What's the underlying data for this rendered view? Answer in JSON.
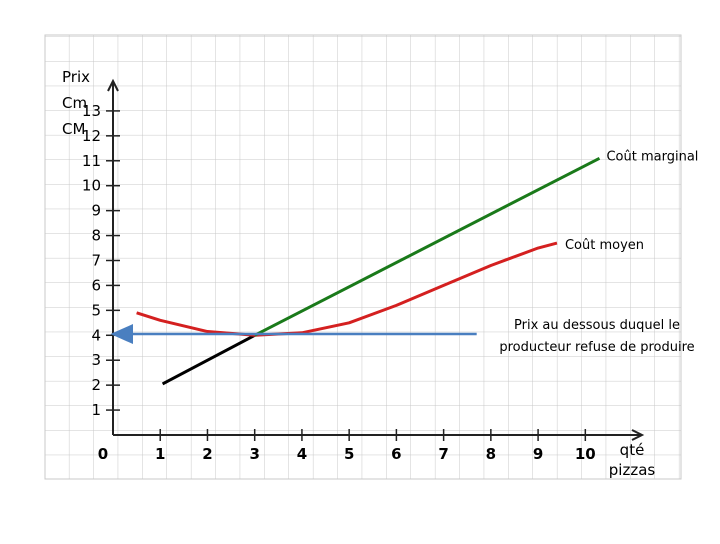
{
  "chart_data": {
    "type": "line",
    "ylabel": [
      "Prix",
      "Cm",
      "CM"
    ],
    "xlabel": [
      "qté",
      "pizzas"
    ],
    "xlim": [
      0,
      11.2
    ],
    "ylim": [
      0,
      14.2
    ],
    "xticks": [
      0,
      1,
      2,
      3,
      4,
      5,
      6,
      7,
      8,
      9,
      10
    ],
    "yticks": [
      1,
      2,
      3,
      4,
      5,
      6,
      7,
      8,
      9,
      10,
      11,
      12,
      13
    ],
    "grid": true,
    "series": [
      {
        "color": "#000000",
        "x": [
          1.05,
          3
        ],
        "values": [
          2.05,
          4
        ]
      },
      {
        "name": "Coût moyen",
        "color": "#d42020",
        "x": [
          0.5,
          1,
          2,
          3,
          4,
          5,
          6,
          7,
          8,
          9,
          9.4
        ],
        "values": [
          4.9,
          4.6,
          4.15,
          4.0,
          4.1,
          4.5,
          5.2,
          6.0,
          6.8,
          7.5,
          7.7
        ]
      },
      {
        "name": "Coût marginal",
        "color": "#1a7a1a",
        "x": [
          3,
          10.3
        ],
        "values": [
          4,
          11.1
        ]
      },
      {
        "color": "#4a7fc0",
        "x": [
          7.7,
          0
        ],
        "values": [
          4.05,
          4.05
        ]
      }
    ],
    "annotations": [
      [
        "Coût marginal"
      ],
      [
        "Coût moyen"
      ],
      [
        "Prix au dessous duquel le",
        "producteur refuse de produire"
      ]
    ]
  }
}
